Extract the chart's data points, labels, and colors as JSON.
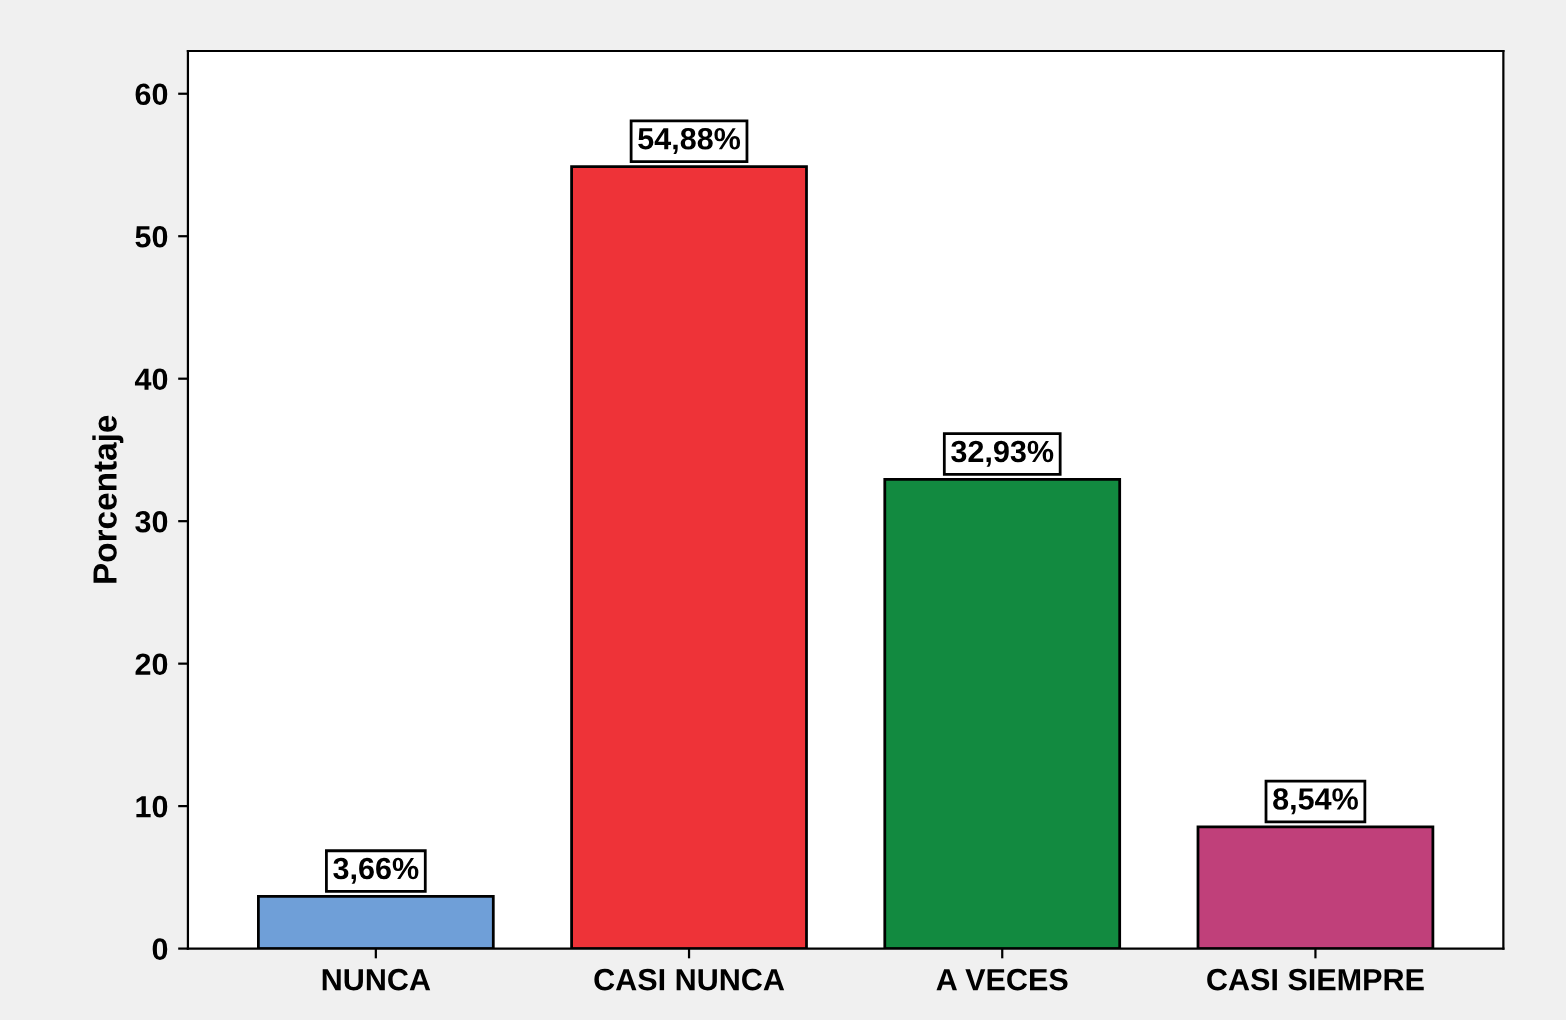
{
  "chart_data": {
    "type": "bar",
    "ylabel": "Porcentaje",
    "categories": [
      "NUNCA",
      "CASI NUNCA",
      "A VECES",
      "CASI SIEMPRE"
    ],
    "values": [
      3.66,
      54.88,
      32.93,
      8.54
    ],
    "colors": [
      "#6f9fd8",
      "#ee3338",
      "#128a40",
      "#c0407a"
    ],
    "value_labels": [
      "3,66%",
      "54,88%",
      "32,93%",
      "8,54%"
    ],
    "ylim": [
      0,
      63
    ],
    "yticks": [
      0,
      10,
      20,
      30,
      40,
      50,
      60
    ],
    "grid": false
  }
}
